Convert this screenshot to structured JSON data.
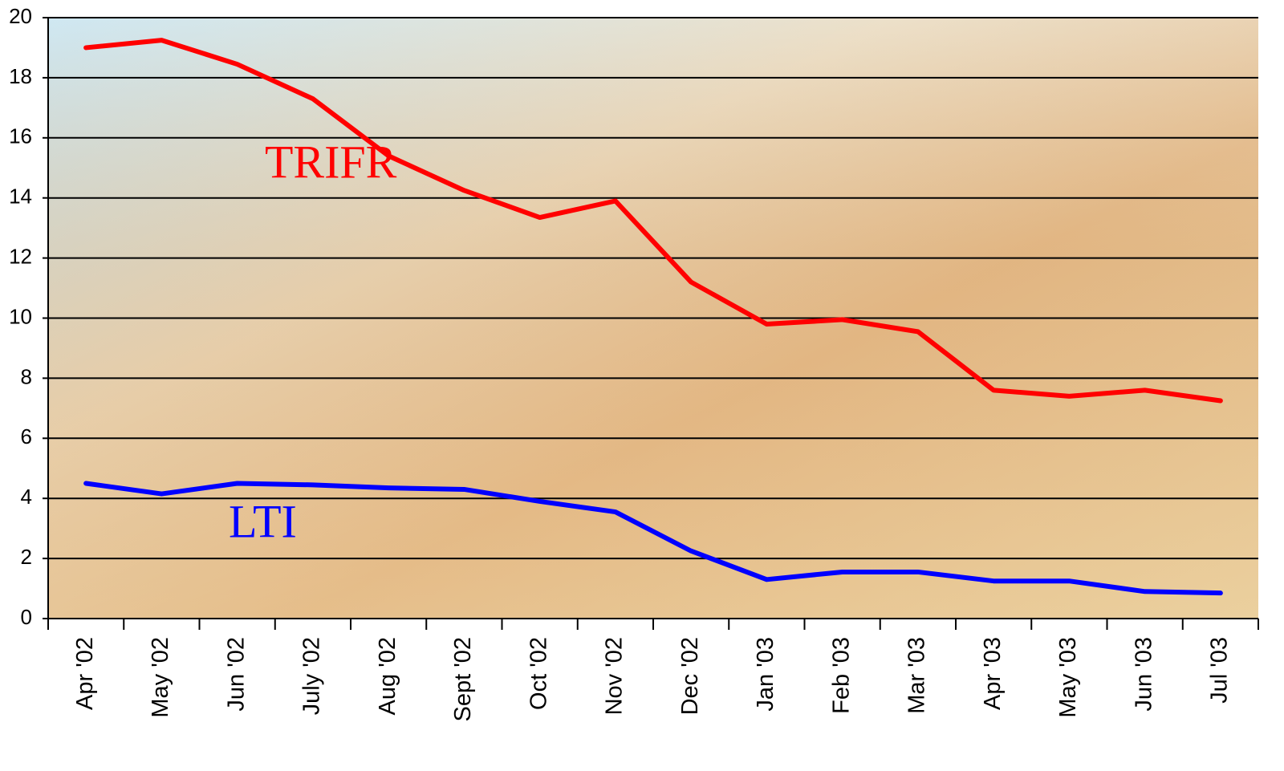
{
  "chart_data": {
    "type": "line",
    "categories": [
      "Apr '02",
      "May '02",
      "Jun '02",
      "July '02",
      "Aug '02",
      "Sept '02",
      "Oct '02",
      "Nov '02",
      "Dec '02",
      "Jan '03",
      "Feb '03",
      "Mar '03",
      "Apr '03",
      "May '03",
      "Jun '03",
      "Jul '03"
    ],
    "series": [
      {
        "name": "TRIFR",
        "color": "#ff0000",
        "values": [
          19.0,
          19.25,
          18.45,
          17.3,
          15.4,
          14.25,
          13.35,
          13.9,
          11.2,
          9.8,
          9.95,
          9.55,
          7.6,
          7.4,
          7.6,
          7.25
        ]
      },
      {
        "name": "LTI",
        "color": "#0000ff",
        "values": [
          4.5,
          4.15,
          4.5,
          4.45,
          4.35,
          4.3,
          3.9,
          3.55,
          2.25,
          1.3,
          1.55,
          1.55,
          1.25,
          1.25,
          0.9,
          0.85
        ]
      }
    ],
    "ylim": [
      0,
      20
    ],
    "yticks": [
      0,
      2,
      4,
      6,
      8,
      10,
      12,
      14,
      16,
      18,
      20
    ],
    "grid": true
  }
}
